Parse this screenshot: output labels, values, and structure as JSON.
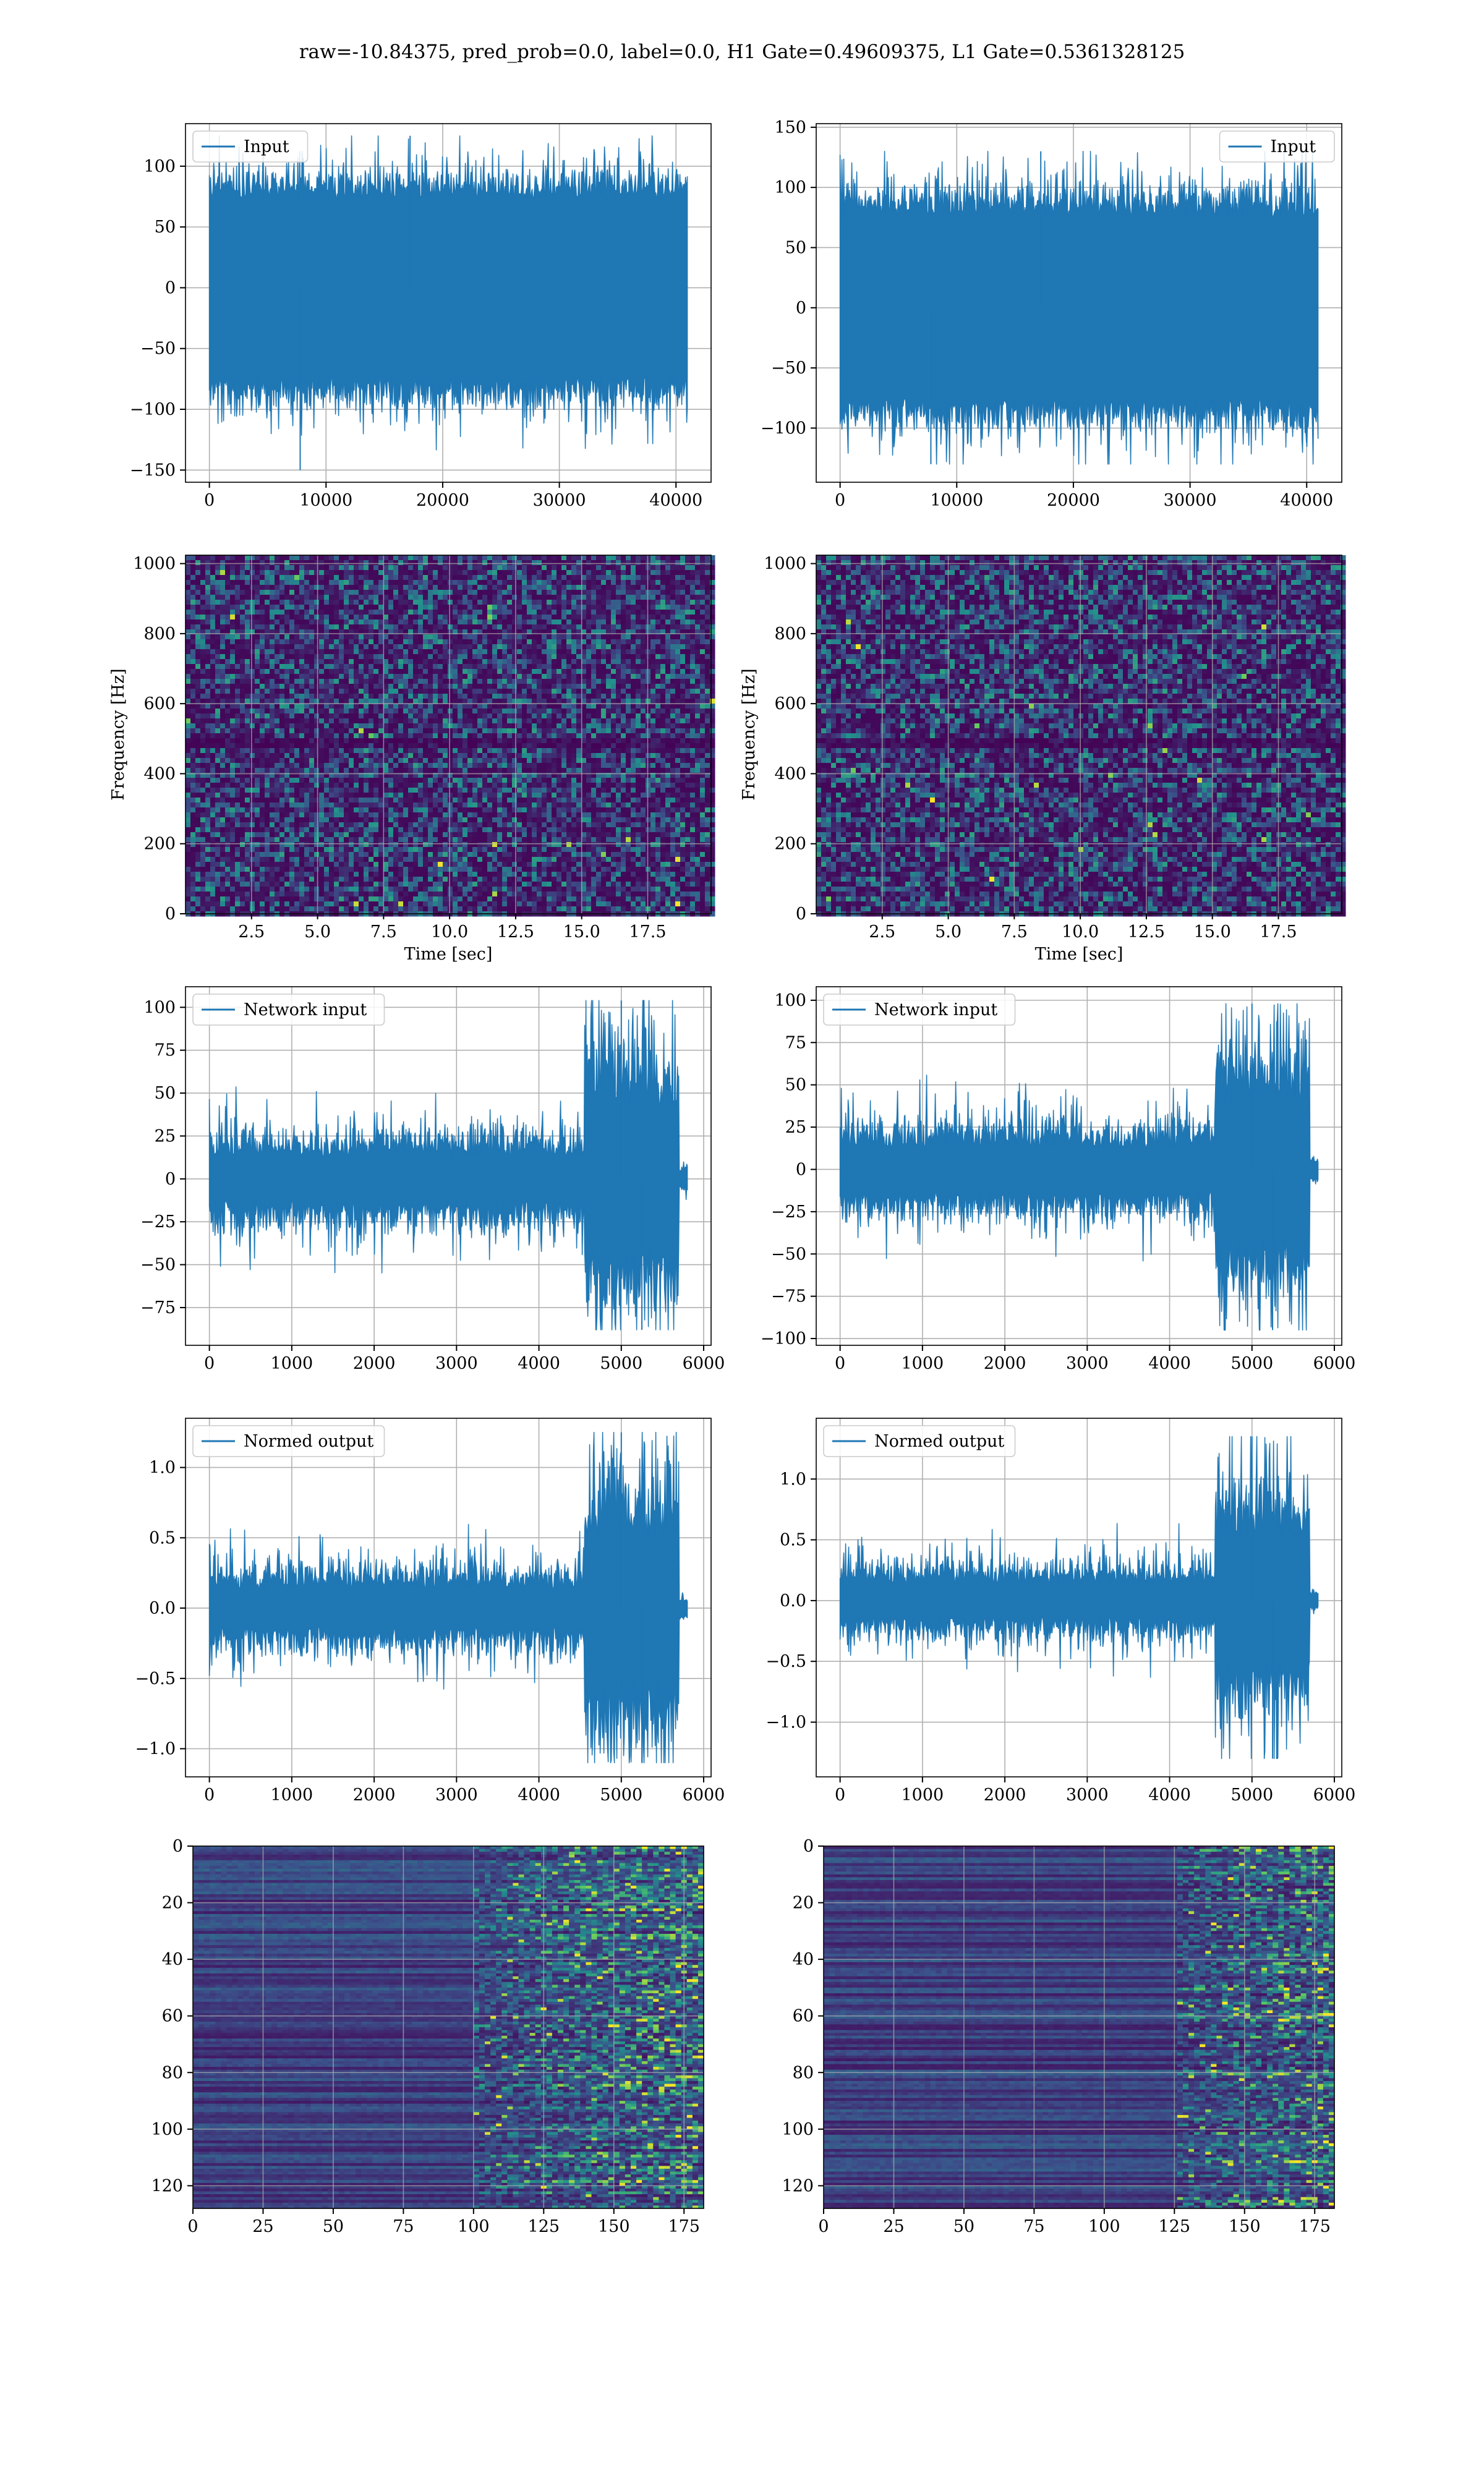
{
  "figure": {
    "title": "raw=-10.84375, pred_prob=0.0, label=0.0, H1 Gate=0.49609375, L1 Gate=0.5361328125"
  },
  "colors": {
    "line": "#1f77b4",
    "grid": "#b0b0b0",
    "axes": "#000000",
    "legend_border": "#cccccc",
    "colormap": [
      "#440154",
      "#3b528b",
      "#21918c",
      "#5ec962",
      "#fde725"
    ]
  },
  "chart_data": [
    {
      "id": "h1-input",
      "type": "line",
      "xlim": [
        -2048,
        43008
      ],
      "ylim": [
        -160,
        135
      ],
      "xticks": [
        0,
        10000,
        20000,
        30000,
        40000
      ],
      "yticks": [
        -150,
        -100,
        -50,
        0,
        50,
        100
      ],
      "grid": true,
      "legend_loc": "upper left",
      "series": [
        {
          "name": "Input",
          "n": 40960,
          "envelope_max": 125,
          "envelope_min": -150,
          "core_amplitude": 72,
          "profile": "stationary"
        }
      ]
    },
    {
      "id": "l1-input",
      "type": "line",
      "xlim": [
        -2048,
        43008
      ],
      "ylim": [
        -145,
        153
      ],
      "xticks": [
        0,
        10000,
        20000,
        30000,
        40000
      ],
      "yticks": [
        -100,
        -50,
        0,
        50,
        100,
        150
      ],
      "grid": true,
      "legend_loc": "upper right",
      "series": [
        {
          "name": "Input",
          "n": 40960,
          "envelope_max": 130,
          "envelope_min": -130,
          "core_amplitude": 75,
          "profile": "stationary"
        }
      ]
    },
    {
      "id": "h1-spectrogram",
      "type": "heatmap",
      "xlabel": "Time [sec]",
      "ylabel": "Frequency [Hz]",
      "xlim": [
        0,
        19.9
      ],
      "ylim": [
        0,
        1024
      ],
      "xticks": [
        2.5,
        5.0,
        7.5,
        10.0,
        12.5,
        15.0,
        17.5
      ],
      "xtick_labels": [
        "2.5",
        "5.0",
        "7.5",
        "10.0",
        "12.5",
        "15.0",
        "17.5"
      ],
      "yticks": [
        0,
        200,
        400,
        600,
        800,
        1000
      ],
      "grid": true,
      "colormap": "viridis",
      "dark_band_hz": [
        485,
        510
      ]
    },
    {
      "id": "l1-spectrogram",
      "type": "heatmap",
      "xlabel": "Time [sec]",
      "ylabel": "Frequency [Hz]",
      "xlim": [
        0,
        19.9
      ],
      "ylim": [
        0,
        1024
      ],
      "xticks": [
        2.5,
        5.0,
        7.5,
        10.0,
        12.5,
        15.0,
        17.5
      ],
      "xtick_labels": [
        "2.5",
        "5.0",
        "7.5",
        "10.0",
        "12.5",
        "15.0",
        "17.5"
      ],
      "yticks": [
        0,
        200,
        400,
        600,
        800,
        1000
      ],
      "grid": true,
      "colormap": "viridis",
      "dark_band_hz": [
        485,
        510
      ]
    },
    {
      "id": "h1-network-input",
      "type": "line",
      "xlim": [
        -290,
        6090
      ],
      "ylim": [
        -97,
        112
      ],
      "xticks": [
        0,
        1000,
        2000,
        3000,
        4000,
        5000,
        6000
      ],
      "yticks": [
        -75,
        -50,
        -25,
        0,
        25,
        50,
        75,
        100
      ],
      "grid": true,
      "legend_loc": "upper left",
      "series": [
        {
          "name": "Network input",
          "n": 5800,
          "onset": 4550,
          "end": 5700,
          "pre_amplitude": 12,
          "post_amplitude": 40,
          "envelope_max": 104,
          "envelope_min": -88,
          "profile": "burst"
        }
      ]
    },
    {
      "id": "l1-network-input",
      "type": "line",
      "xlim": [
        -290,
        6090
      ],
      "ylim": [
        -104,
        108
      ],
      "xticks": [
        0,
        1000,
        2000,
        3000,
        4000,
        5000,
        6000
      ],
      "yticks": [
        -100,
        -75,
        -50,
        -25,
        0,
        25,
        50,
        75,
        100
      ],
      "grid": true,
      "legend_loc": "upper left",
      "series": [
        {
          "name": "Network input",
          "n": 5800,
          "onset": 4550,
          "end": 5700,
          "pre_amplitude": 12,
          "post_amplitude": 40,
          "envelope_max": 98,
          "envelope_min": -95,
          "profile": "burst"
        }
      ]
    },
    {
      "id": "h1-normed-output",
      "type": "line",
      "xlim": [
        -290,
        6090
      ],
      "ylim": [
        -1.2,
        1.35
      ],
      "xticks": [
        0,
        1000,
        2000,
        3000,
        4000,
        5000,
        6000
      ],
      "yticks": [
        -1.0,
        -0.5,
        0.0,
        0.5,
        1.0
      ],
      "ytick_labels": [
        "−1.0",
        "−0.5",
        "0.0",
        "0.5",
        "1.0"
      ],
      "grid": true,
      "legend_loc": "upper left",
      "series": [
        {
          "name": "Normed output",
          "n": 5800,
          "onset": 4550,
          "end": 5700,
          "pre_amplitude": 0.13,
          "post_amplitude": 0.5,
          "envelope_max": 1.25,
          "envelope_min": -1.1,
          "profile": "burst"
        }
      ]
    },
    {
      "id": "l1-normed-output",
      "type": "line",
      "xlim": [
        -290,
        6090
      ],
      "ylim": [
        -1.45,
        1.5
      ],
      "xticks": [
        0,
        1000,
        2000,
        3000,
        4000,
        5000,
        6000
      ],
      "yticks": [
        -1.0,
        -0.5,
        0.0,
        0.5,
        1.0
      ],
      "ytick_labels": [
        "−1.0",
        "−0.5",
        "0.0",
        "0.5",
        "1.0"
      ],
      "grid": true,
      "legend_loc": "upper left",
      "series": [
        {
          "name": "Normed output",
          "n": 5800,
          "onset": 4550,
          "end": 5700,
          "pre_amplitude": 0.13,
          "post_amplitude": 0.5,
          "envelope_max": 1.35,
          "envelope_min": -1.3,
          "profile": "burst"
        }
      ]
    },
    {
      "id": "h1-feature-map",
      "type": "heatmap",
      "xlim": [
        0,
        182
      ],
      "ylim": [
        128,
        0
      ],
      "xticks": [
        0,
        25,
        50,
        75,
        100,
        125,
        150,
        175
      ],
      "yticks": [
        0,
        20,
        40,
        60,
        80,
        100,
        120
      ],
      "grid": true,
      "colormap": "viridis",
      "rows": 128,
      "cols": 182,
      "activity_onset": 100
    },
    {
      "id": "l1-feature-map",
      "type": "heatmap",
      "xlim": [
        0,
        182
      ],
      "ylim": [
        128,
        0
      ],
      "xticks": [
        0,
        25,
        50,
        75,
        100,
        125,
        150,
        175
      ],
      "yticks": [
        0,
        20,
        40,
        60,
        80,
        100,
        120
      ],
      "grid": true,
      "colormap": "viridis",
      "rows": 128,
      "cols": 182,
      "activity_onset": 125
    }
  ]
}
